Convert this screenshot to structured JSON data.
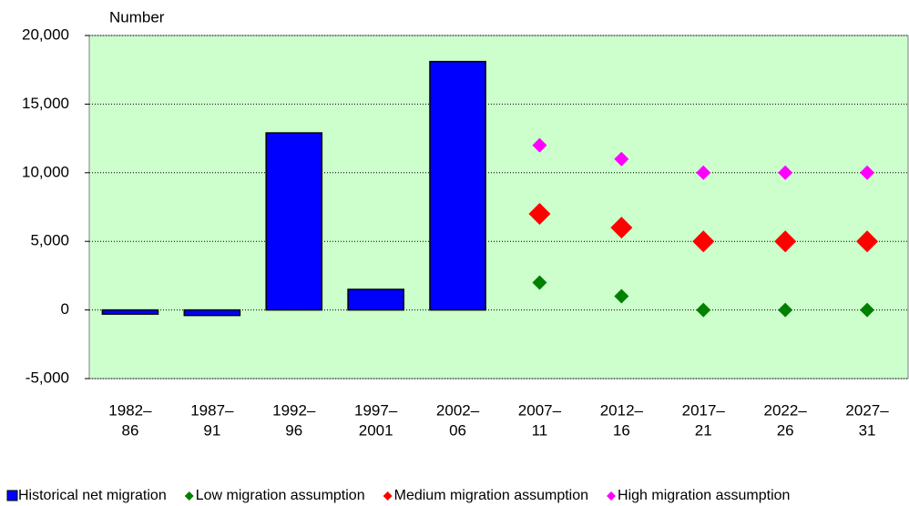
{
  "chart_data": {
    "type": "bar",
    "y_label": "Number",
    "categories": [
      [
        "1982–",
        "86"
      ],
      [
        "1987–",
        "91"
      ],
      [
        "1992–",
        "96"
      ],
      [
        "1997–",
        "2001"
      ],
      [
        "2002–",
        "06"
      ],
      [
        "2007–",
        "11"
      ],
      [
        "2012–",
        "16"
      ],
      [
        "2017–",
        "21"
      ],
      [
        "2022–",
        "26"
      ],
      [
        "2027–",
        "31"
      ]
    ],
    "series": [
      {
        "name": "Historical net migration",
        "color": "#0000ff",
        "mark": "bar",
        "values": [
          -300,
          -400,
          12900,
          1500,
          18100,
          null,
          null,
          null,
          null,
          null
        ]
      },
      {
        "name": "Low migration assumption",
        "color": "#008000",
        "mark": "diamond",
        "values": [
          null,
          null,
          null,
          null,
          null,
          2000,
          1000,
          0,
          0,
          0
        ]
      },
      {
        "name": "Medium migration assumption",
        "color": "#ff0000",
        "mark": "diamond",
        "values": [
          null,
          null,
          null,
          null,
          null,
          7000,
          6000,
          5000,
          5000,
          5000
        ]
      },
      {
        "name": "High migration assumption",
        "color": "#ff00ff",
        "mark": "diamond",
        "values": [
          null,
          null,
          null,
          null,
          null,
          12000,
          11000,
          10000,
          10000,
          10000
        ]
      }
    ],
    "ylim": [
      -5000,
      20000
    ],
    "yticks": [
      {
        "value": -5000,
        "label": "-5,000"
      },
      0,
      {
        "value": 5000,
        "label": "5,000"
      },
      {
        "value": 10000,
        "label": "10,000"
      },
      {
        "value": 15000,
        "label": "15,000"
      },
      {
        "value": 20000,
        "label": "20,000"
      }
    ],
    "grid": true,
    "plot_background": "#ccffcc",
    "legend": "bottom"
  }
}
